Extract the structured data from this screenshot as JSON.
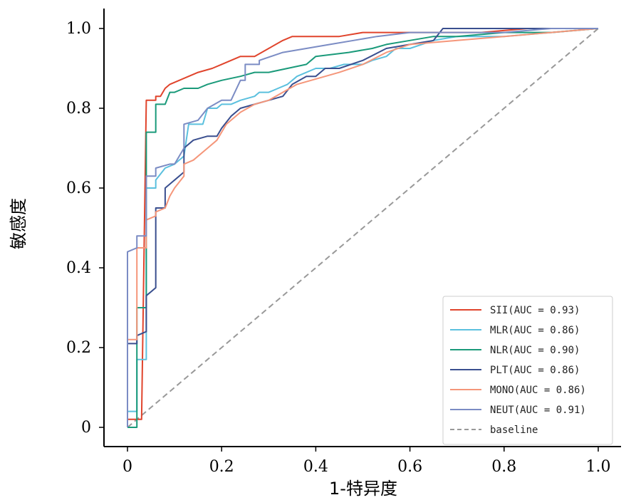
{
  "chart_data": {
    "type": "line",
    "title": "",
    "xlabel": "1-特异度",
    "ylabel": "敏感度",
    "xlim": [
      0,
      1
    ],
    "ylim": [
      0,
      1
    ],
    "xticks": [
      "0",
      "0.2",
      "0.4",
      "0.6",
      "0.8",
      "1.0"
    ],
    "yticks": [
      "0",
      "0.2",
      "0.4",
      "0.6",
      "0.8",
      "1.0"
    ],
    "grid": false,
    "legend_position": "bottom-right",
    "series": [
      {
        "name": "SII(AUC = 0.93)",
        "color": "#e0442c",
        "dash": "",
        "points": [
          [
            0,
            0
          ],
          [
            0,
            0.02
          ],
          [
            0.03,
            0.02
          ],
          [
            0.04,
            0.82
          ],
          [
            0.06,
            0.82
          ],
          [
            0.06,
            0.83
          ],
          [
            0.07,
            0.83
          ],
          [
            0.08,
            0.85
          ],
          [
            0.09,
            0.86
          ],
          [
            0.11,
            0.87
          ],
          [
            0.13,
            0.88
          ],
          [
            0.15,
            0.89
          ],
          [
            0.18,
            0.9
          ],
          [
            0.2,
            0.91
          ],
          [
            0.22,
            0.92
          ],
          [
            0.24,
            0.93
          ],
          [
            0.27,
            0.93
          ],
          [
            0.3,
            0.95
          ],
          [
            0.33,
            0.97
          ],
          [
            0.35,
            0.98
          ],
          [
            0.45,
            0.98
          ],
          [
            0.5,
            0.99
          ],
          [
            0.55,
            0.99
          ],
          [
            0.6,
            0.99
          ],
          [
            0.65,
            0.99
          ],
          [
            0.75,
            0.99
          ],
          [
            0.85,
            1.0
          ],
          [
            0.98,
            1.0
          ],
          [
            1,
            1
          ]
        ]
      },
      {
        "name": "MLR(AUC = 0.86)",
        "color": "#5bc0de",
        "dash": "",
        "points": [
          [
            0,
            0
          ],
          [
            0,
            0.04
          ],
          [
            0.02,
            0.04
          ],
          [
            0.02,
            0.17
          ],
          [
            0.04,
            0.17
          ],
          [
            0.04,
            0.6
          ],
          [
            0.06,
            0.6
          ],
          [
            0.06,
            0.62
          ],
          [
            0.08,
            0.65
          ],
          [
            0.1,
            0.66
          ],
          [
            0.12,
            0.68
          ],
          [
            0.13,
            0.76
          ],
          [
            0.16,
            0.76
          ],
          [
            0.17,
            0.8
          ],
          [
            0.19,
            0.8
          ],
          [
            0.2,
            0.81
          ],
          [
            0.22,
            0.81
          ],
          [
            0.24,
            0.82
          ],
          [
            0.27,
            0.83
          ],
          [
            0.28,
            0.84
          ],
          [
            0.3,
            0.84
          ],
          [
            0.32,
            0.85
          ],
          [
            0.34,
            0.86
          ],
          [
            0.36,
            0.88
          ],
          [
            0.4,
            0.9
          ],
          [
            0.43,
            0.9
          ],
          [
            0.46,
            0.91
          ],
          [
            0.5,
            0.91
          ],
          [
            0.52,
            0.92
          ],
          [
            0.55,
            0.93
          ],
          [
            0.57,
            0.95
          ],
          [
            0.6,
            0.95
          ],
          [
            0.65,
            0.97
          ],
          [
            0.7,
            0.98
          ],
          [
            0.8,
            0.98
          ],
          [
            0.9,
            0.99
          ],
          [
            1,
            1
          ]
        ]
      },
      {
        "name": "NLR(AUC = 0.90)",
        "color": "#1a9a7a",
        "dash": "",
        "points": [
          [
            0,
            0
          ],
          [
            0.02,
            0
          ],
          [
            0.02,
            0.3
          ],
          [
            0.04,
            0.3
          ],
          [
            0.04,
            0.74
          ],
          [
            0.06,
            0.74
          ],
          [
            0.06,
            0.81
          ],
          [
            0.08,
            0.81
          ],
          [
            0.09,
            0.84
          ],
          [
            0.1,
            0.84
          ],
          [
            0.12,
            0.85
          ],
          [
            0.15,
            0.85
          ],
          [
            0.17,
            0.86
          ],
          [
            0.2,
            0.87
          ],
          [
            0.24,
            0.88
          ],
          [
            0.27,
            0.89
          ],
          [
            0.3,
            0.89
          ],
          [
            0.34,
            0.9
          ],
          [
            0.38,
            0.91
          ],
          [
            0.4,
            0.93
          ],
          [
            0.47,
            0.94
          ],
          [
            0.52,
            0.95
          ],
          [
            0.55,
            0.96
          ],
          [
            0.6,
            0.97
          ],
          [
            0.65,
            0.98
          ],
          [
            0.7,
            0.98
          ],
          [
            0.8,
            0.99
          ],
          [
            0.9,
            0.99
          ],
          [
            1,
            1
          ]
        ]
      },
      {
        "name": "PLT(AUC = 0.86)",
        "color": "#3a4f8f",
        "dash": "",
        "points": [
          [
            0,
            0
          ],
          [
            0,
            0.21
          ],
          [
            0.02,
            0.21
          ],
          [
            0.02,
            0.23
          ],
          [
            0.04,
            0.24
          ],
          [
            0.04,
            0.33
          ],
          [
            0.06,
            0.35
          ],
          [
            0.06,
            0.55
          ],
          [
            0.08,
            0.55
          ],
          [
            0.08,
            0.6
          ],
          [
            0.1,
            0.62
          ],
          [
            0.12,
            0.64
          ],
          [
            0.12,
            0.7
          ],
          [
            0.14,
            0.72
          ],
          [
            0.17,
            0.73
          ],
          [
            0.19,
            0.73
          ],
          [
            0.2,
            0.75
          ],
          [
            0.22,
            0.78
          ],
          [
            0.24,
            0.8
          ],
          [
            0.27,
            0.81
          ],
          [
            0.3,
            0.82
          ],
          [
            0.33,
            0.83
          ],
          [
            0.35,
            0.86
          ],
          [
            0.38,
            0.88
          ],
          [
            0.4,
            0.88
          ],
          [
            0.42,
            0.9
          ],
          [
            0.45,
            0.9
          ],
          [
            0.5,
            0.92
          ],
          [
            0.55,
            0.95
          ],
          [
            0.6,
            0.96
          ],
          [
            0.65,
            0.97
          ],
          [
            0.67,
            1.0
          ],
          [
            0.8,
            1.0
          ],
          [
            0.9,
            1.0
          ],
          [
            1,
            1
          ]
        ]
      },
      {
        "name": "MONO(AUC = 0.86)",
        "color": "#f5967a",
        "dash": "",
        "points": [
          [
            0,
            0
          ],
          [
            0,
            0.22
          ],
          [
            0.02,
            0.22
          ],
          [
            0.02,
            0.45
          ],
          [
            0.04,
            0.45
          ],
          [
            0.04,
            0.52
          ],
          [
            0.06,
            0.53
          ],
          [
            0.06,
            0.54
          ],
          [
            0.08,
            0.55
          ],
          [
            0.09,
            0.58
          ],
          [
            0.1,
            0.6
          ],
          [
            0.12,
            0.63
          ],
          [
            0.12,
            0.66
          ],
          [
            0.14,
            0.67
          ],
          [
            0.17,
            0.7
          ],
          [
            0.19,
            0.72
          ],
          [
            0.21,
            0.76
          ],
          [
            0.24,
            0.79
          ],
          [
            0.27,
            0.81
          ],
          [
            0.3,
            0.82
          ],
          [
            0.33,
            0.84
          ],
          [
            0.36,
            0.86
          ],
          [
            0.39,
            0.87
          ],
          [
            0.42,
            0.88
          ],
          [
            0.45,
            0.89
          ],
          [
            0.5,
            0.91
          ],
          [
            0.55,
            0.94
          ],
          [
            0.6,
            0.96
          ],
          [
            0.7,
            0.97
          ],
          [
            0.8,
            0.98
          ],
          [
            0.9,
            0.99
          ],
          [
            1,
            1
          ]
        ]
      },
      {
        "name": "NEUT(AUC = 0.91)",
        "color": "#7b8cc4",
        "dash": "",
        "points": [
          [
            0,
            0
          ],
          [
            0,
            0.44
          ],
          [
            0.02,
            0.45
          ],
          [
            0.02,
            0.48
          ],
          [
            0.04,
            0.48
          ],
          [
            0.04,
            0.63
          ],
          [
            0.06,
            0.63
          ],
          [
            0.06,
            0.65
          ],
          [
            0.09,
            0.66
          ],
          [
            0.1,
            0.66
          ],
          [
            0.12,
            0.7
          ],
          [
            0.12,
            0.76
          ],
          [
            0.15,
            0.77
          ],
          [
            0.17,
            0.8
          ],
          [
            0.2,
            0.82
          ],
          [
            0.22,
            0.82
          ],
          [
            0.24,
            0.87
          ],
          [
            0.25,
            0.87
          ],
          [
            0.25,
            0.91
          ],
          [
            0.28,
            0.91
          ],
          [
            0.28,
            0.92
          ],
          [
            0.33,
            0.94
          ],
          [
            0.38,
            0.95
          ],
          [
            0.43,
            0.96
          ],
          [
            0.48,
            0.97
          ],
          [
            0.53,
            0.98
          ],
          [
            0.6,
            0.99
          ],
          [
            0.7,
            0.99
          ],
          [
            0.8,
            0.99
          ],
          [
            0.9,
            1.0
          ],
          [
            1,
            1
          ]
        ]
      },
      {
        "name": "baseline",
        "color": "#999999",
        "dash": "8,5",
        "points": [
          [
            0,
            0
          ],
          [
            1,
            1
          ]
        ]
      }
    ]
  }
}
